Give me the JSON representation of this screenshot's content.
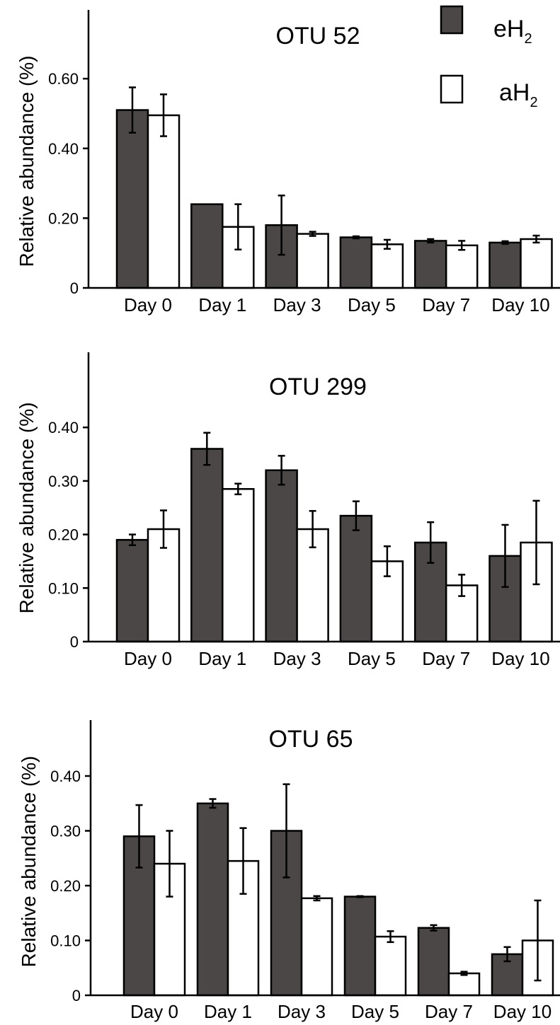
{
  "legend": {
    "items": [
      {
        "label": "eH",
        "subscript": "2",
        "color": "#4a4746"
      },
      {
        "label": "aH",
        "subscript": "2",
        "color": "#ffffff"
      }
    ]
  },
  "chart_data": [
    {
      "type": "bar",
      "title": "OTU 52",
      "ylabel": "Relative abundance (%)",
      "xlabel": "",
      "categories": [
        "Day 0",
        "Day 1",
        "Day 3",
        "Day 5",
        "Day 7",
        "Day 10"
      ],
      "ylim": [
        0,
        0.8
      ],
      "yticks": [
        0,
        0.2,
        0.4,
        0.6
      ],
      "ytick_labels": [
        "0",
        "0.20",
        "0.40",
        "0.60"
      ],
      "series": [
        {
          "name": "eH2",
          "color": "#4a4746",
          "values": [
            0.51,
            0.24,
            0.18,
            0.145,
            0.135,
            0.13
          ],
          "errors": [
            0.065,
            0.0,
            0.085,
            0.003,
            0.005,
            0.004
          ]
        },
        {
          "name": "aH2",
          "color": "#ffffff",
          "values": [
            0.495,
            0.175,
            0.155,
            0.125,
            0.122,
            0.14
          ],
          "errors": [
            0.06,
            0.065,
            0.006,
            0.013,
            0.013,
            0.01
          ]
        }
      ]
    },
    {
      "type": "bar",
      "title": "OTU 299",
      "ylabel": "Relative abundance (%)",
      "xlabel": "",
      "categories": [
        "Day 0",
        "Day 1",
        "Day 3",
        "Day 5",
        "Day 7",
        "Day 10"
      ],
      "ylim": [
        0,
        0.55
      ],
      "yticks": [
        0,
        0.1,
        0.2,
        0.3,
        0.4
      ],
      "ytick_labels": [
        "0",
        "0.10",
        "0.20",
        "0.30",
        "0.40"
      ],
      "series": [
        {
          "name": "eH2",
          "color": "#4a4746",
          "values": [
            0.19,
            0.36,
            0.32,
            0.235,
            0.185,
            0.16
          ],
          "errors": [
            0.01,
            0.03,
            0.027,
            0.027,
            0.038,
            0.058
          ]
        },
        {
          "name": "aH2",
          "color": "#ffffff",
          "values": [
            0.21,
            0.285,
            0.21,
            0.15,
            0.105,
            0.185
          ],
          "errors": [
            0.035,
            0.01,
            0.034,
            0.028,
            0.02,
            0.078
          ]
        }
      ]
    },
    {
      "type": "bar",
      "title": "OTU 65",
      "ylabel": "Relative abundance (%)",
      "xlabel": "",
      "categories": [
        "Day 0",
        "Day 1",
        "Day 3",
        "Day 5",
        "Day 7",
        "Day 10"
      ],
      "ylim": [
        0,
        0.5
      ],
      "yticks": [
        0,
        0.1,
        0.2,
        0.3,
        0.4
      ],
      "ytick_labels": [
        "0",
        "0.10",
        "0.20",
        "0.30",
        "0.40"
      ],
      "series": [
        {
          "name": "eH2",
          "color": "#4a4746",
          "values": [
            0.29,
            0.35,
            0.3,
            0.18,
            0.123,
            0.075
          ],
          "errors": [
            0.057,
            0.008,
            0.085,
            0.001,
            0.005,
            0.013
          ]
        },
        {
          "name": "aH2",
          "color": "#ffffff",
          "values": [
            0.24,
            0.245,
            0.177,
            0.107,
            0.04,
            0.1
          ],
          "errors": [
            0.06,
            0.06,
            0.004,
            0.01,
            0.003,
            0.073
          ]
        }
      ]
    }
  ]
}
